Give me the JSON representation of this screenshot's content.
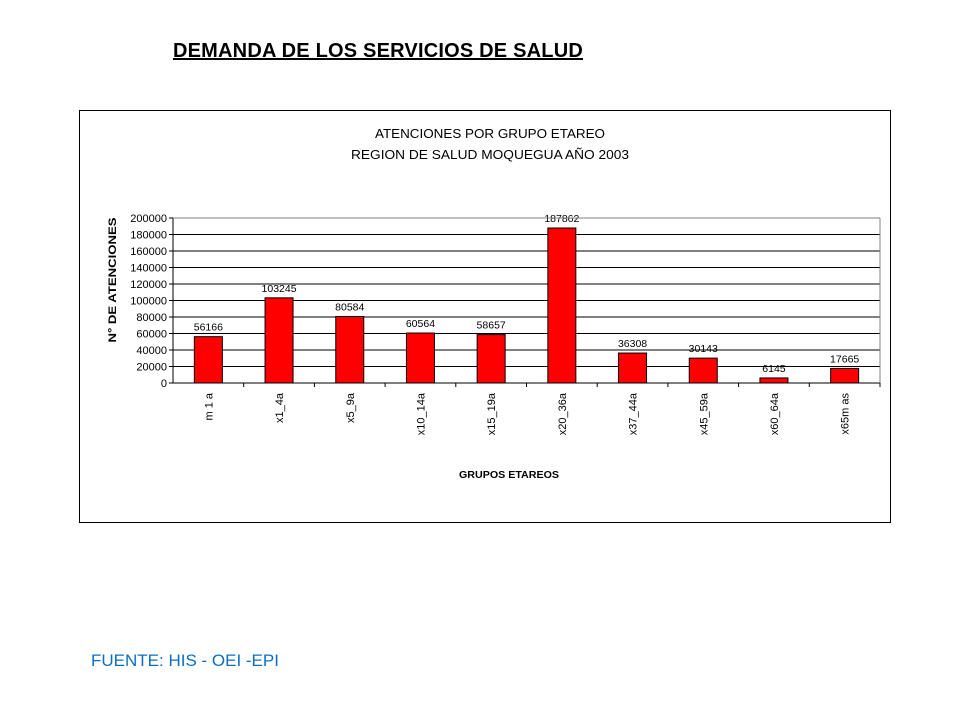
{
  "page": {
    "title": "DEMANDA DE LOS SERVICIOS DE SALUD",
    "source": "FUENTE: HIS - OEI -EPI"
  },
  "colors": {
    "bar": "#ff0000",
    "source_text": "#0b6fc0"
  },
  "chart_data": {
    "type": "bar",
    "title": "ATENCIONES POR GRUPO ETAREO",
    "subtitle": "REGION DE SALUD MOQUEGUA AÑO 2003",
    "xlabel": "GRUPOS ETAREOS",
    "ylabel": "N° DE ATENCIONES",
    "categories": [
      "m 1 a",
      "x1_4a",
      "x5_9a",
      "x10_14a",
      "x15_19a",
      "x20_36a",
      "x37_44a",
      "x45_59a",
      "x60_64a",
      "x65m as"
    ],
    "values": [
      56166,
      103245,
      80584,
      60564,
      58657,
      187862,
      36308,
      30143,
      6145,
      17665
    ],
    "value_labels": [
      "56166",
      "103245",
      "80584",
      "60564",
      "58657",
      "187862",
      "36308",
      "30143",
      "6145",
      "17665"
    ],
    "ylim": [
      0,
      200000
    ],
    "yticks": [
      0,
      20000,
      40000,
      60000,
      80000,
      100000,
      120000,
      140000,
      160000,
      180000,
      200000
    ],
    "ytick_labels": [
      "0",
      "20000",
      "40000",
      "60000",
      "80000",
      "100000",
      "120000",
      "140000",
      "160000",
      "180000",
      "200000"
    ],
    "grid": true,
    "legend": "none"
  }
}
